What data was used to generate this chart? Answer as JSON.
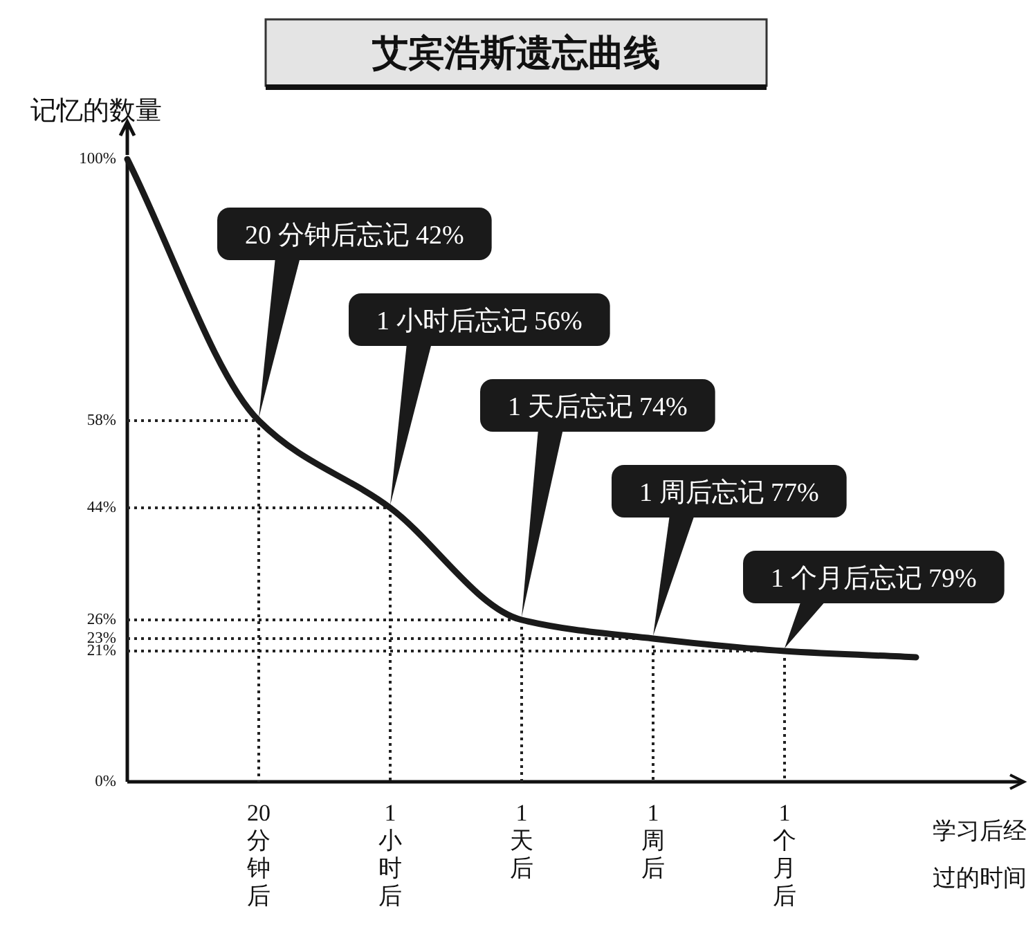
{
  "chart_data": {
    "type": "line",
    "title": "艾宾浩斯遗忘曲线",
    "ylabel": "记忆的数量",
    "xlabel": "学习后经过的时间",
    "categories": [
      null,
      "20分钟后",
      "1小时后",
      "1天后",
      "1周后",
      "1个月后",
      null
    ],
    "series": [
      {
        "color": "#1a1a1a",
        "values": [
          100,
          58,
          44,
          26,
          23,
          21,
          20
        ]
      }
    ],
    "ylim": [
      0,
      100
    ],
    "yticks": [
      {
        "value": 0,
        "label": "0%"
      },
      {
        "value": 21,
        "label": "21%"
      },
      {
        "value": 23,
        "label": "23%"
      },
      {
        "value": 26,
        "label": "26%"
      },
      {
        "value": 44,
        "label": "44%"
      },
      {
        "value": 58,
        "label": "58%"
      },
      {
        "value": 100,
        "label": "100%"
      }
    ],
    "ref_lines": [
      {
        "axis": "y",
        "value": 58
      },
      {
        "axis": "y",
        "value": 44
      },
      {
        "axis": "y",
        "value": 26
      },
      {
        "axis": "y",
        "value": 23
      },
      {
        "axis": "y",
        "value": 21
      }
    ],
    "annotations": [
      {
        "text": "20 分钟后忘记 42%",
        "x": "20分钟后",
        "y": 58
      },
      {
        "text": "1 小时后忘记 56%",
        "x": "1小时后",
        "y": 44
      },
      {
        "text": "1 天后忘记 74%",
        "x": "1天后",
        "y": 26
      },
      {
        "text": "1 周后忘记 77%",
        "x": "1周后",
        "y": 23
      },
      {
        "text": "1 个月后忘记 79%",
        "x": "1个月后",
        "y": 21
      }
    ]
  }
}
